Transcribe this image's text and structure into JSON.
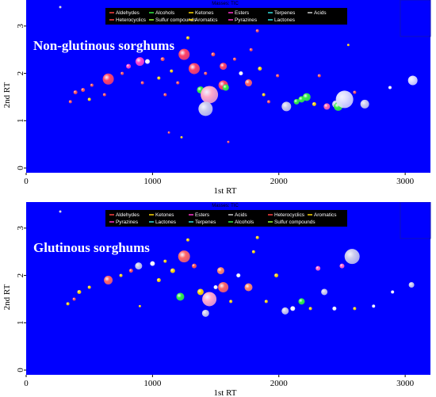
{
  "chart_data": [
    {
      "type": "scatter",
      "title": "Non-glutinous sorghums",
      "masses_label": "Masses: TIC",
      "xlabel": "1st RT",
      "ylabel": "2nd RT",
      "xlim": [
        0,
        3200
      ],
      "ylim": [
        -0.1,
        3.55
      ],
      "x_ticks": [
        0,
        1000,
        2000,
        3000
      ],
      "y_ticks": [
        0,
        1,
        2,
        3
      ],
      "legend": [
        {
          "name": "Aldehydes",
          "color": "#ff4040"
        },
        {
          "name": "Alcohols",
          "color": "#33ee44"
        },
        {
          "name": "Ketones",
          "color": "#ffd700"
        },
        {
          "name": "Esters",
          "color": "#ff33cc"
        },
        {
          "name": "Terpenes",
          "color": "#33dddd"
        },
        {
          "name": "Acids",
          "color": "#cccccc"
        },
        {
          "name": "Heterocyclics",
          "color": "#ff4040"
        },
        {
          "name": "Sulfur compounds",
          "color": "#99ff33"
        },
        {
          "name": "Aromatics",
          "color": "#ffd700"
        },
        {
          "name": "Pyrazines",
          "color": "#ff33cc"
        },
        {
          "name": "Lactones",
          "color": "#33dddd"
        }
      ],
      "points": [
        {
          "x": 270,
          "y": 3.4,
          "s": 1.5,
          "c": "#dddddd"
        },
        {
          "x": 350,
          "y": 1.4,
          "s": 2,
          "c": "#ff5555"
        },
        {
          "x": 390,
          "y": 1.6,
          "s": 2.5,
          "c": "#ff5555"
        },
        {
          "x": 450,
          "y": 1.65,
          "s": 2.5,
          "c": "#ff5555"
        },
        {
          "x": 520,
          "y": 1.75,
          "s": 2,
          "c": "#ff5555"
        },
        {
          "x": 500,
          "y": 1.45,
          "s": 2,
          "c": "#ffd700"
        },
        {
          "x": 650,
          "y": 1.88,
          "s": 7,
          "c": "#ff4466"
        },
        {
          "x": 620,
          "y": 1.55,
          "s": 2,
          "c": "#ff5555"
        },
        {
          "x": 760,
          "y": 2.0,
          "s": 2,
          "c": "#ff5555"
        },
        {
          "x": 810,
          "y": 2.15,
          "s": 3,
          "c": "#ff44cc"
        },
        {
          "x": 900,
          "y": 2.25,
          "s": 5.5,
          "c": "#ff44cc"
        },
        {
          "x": 960,
          "y": 2.25,
          "s": 3,
          "c": "#ffffff"
        },
        {
          "x": 920,
          "y": 1.8,
          "s": 2,
          "c": "#ff5555"
        },
        {
          "x": 1050,
          "y": 1.9,
          "s": 2,
          "c": "#ffd700"
        },
        {
          "x": 1080,
          "y": 2.3,
          "s": 2.5,
          "c": "#ff5555"
        },
        {
          "x": 1100,
          "y": 1.55,
          "s": 2,
          "c": "#ff5555"
        },
        {
          "x": 1130,
          "y": 0.75,
          "s": 1.5,
          "c": "#ff5555"
        },
        {
          "x": 1150,
          "y": 2.05,
          "s": 2,
          "c": "#ffd700"
        },
        {
          "x": 1200,
          "y": 1.8,
          "s": 2,
          "c": "#ff5555"
        },
        {
          "x": 1230,
          "y": 0.65,
          "s": 1.5,
          "c": "#ffd700"
        },
        {
          "x": 1250,
          "y": 2.4,
          "s": 7,
          "c": "#ff4466"
        },
        {
          "x": 1280,
          "y": 2.75,
          "s": 2,
          "c": "#ffd700"
        },
        {
          "x": 1330,
          "y": 2.1,
          "s": 7,
          "c": "#ff4466"
        },
        {
          "x": 1380,
          "y": 1.65,
          "s": 4.5,
          "c": "#33ee44"
        },
        {
          "x": 1420,
          "y": 2.0,
          "s": 2,
          "c": "#ff5555"
        },
        {
          "x": 1450,
          "y": 1.55,
          "s": 11,
          "c": "#ffaacc"
        },
        {
          "x": 1420,
          "y": 1.25,
          "s": 9,
          "c": "#ccccee"
        },
        {
          "x": 1480,
          "y": 2.4,
          "s": 2.5,
          "c": "#ff5555"
        },
        {
          "x": 1560,
          "y": 2.15,
          "s": 4.5,
          "c": "#ff4466"
        },
        {
          "x": 1560,
          "y": 1.75,
          "s": 6,
          "c": "#ff4466"
        },
        {
          "x": 1580,
          "y": 1.7,
          "s": 4,
          "c": "#33ee44"
        },
        {
          "x": 1600,
          "y": 0.55,
          "s": 1.5,
          "c": "#ff5555"
        },
        {
          "x": 1650,
          "y": 2.3,
          "s": 2,
          "c": "#ff5555"
        },
        {
          "x": 1700,
          "y": 2.0,
          "s": 2.5,
          "c": "#ffffff"
        },
        {
          "x": 1760,
          "y": 1.8,
          "s": 4.5,
          "c": "#ff6666"
        },
        {
          "x": 1780,
          "y": 2.5,
          "s": 2,
          "c": "#ff5555"
        },
        {
          "x": 1830,
          "y": 2.9,
          "s": 2,
          "c": "#ff5555"
        },
        {
          "x": 1850,
          "y": 2.1,
          "s": 2.5,
          "c": "#ffd700"
        },
        {
          "x": 1880,
          "y": 1.55,
          "s": 2,
          "c": "#ffd700"
        },
        {
          "x": 1920,
          "y": 1.4,
          "s": 2,
          "c": "#ff5555"
        },
        {
          "x": 1990,
          "y": 1.95,
          "s": 2,
          "c": "#ff5555"
        },
        {
          "x": 2060,
          "y": 1.3,
          "s": 6,
          "c": "#ccccee"
        },
        {
          "x": 2140,
          "y": 1.4,
          "s": 3.5,
          "c": "#33ee44"
        },
        {
          "x": 2180,
          "y": 1.45,
          "s": 4,
          "c": "#33ee44"
        },
        {
          "x": 2220,
          "y": 1.5,
          "s": 5,
          "c": "#33ee44"
        },
        {
          "x": 2280,
          "y": 1.35,
          "s": 2.5,
          "c": "#ffd700"
        },
        {
          "x": 2320,
          "y": 1.95,
          "s": 2,
          "c": "#ff5555"
        },
        {
          "x": 2380,
          "y": 1.3,
          "s": 4,
          "c": "#ff66aa"
        },
        {
          "x": 2450,
          "y": 1.35,
          "s": 4.5,
          "c": "#ccccee"
        },
        {
          "x": 2470,
          "y": 1.3,
          "s": 5.5,
          "c": "#33ee44"
        },
        {
          "x": 2520,
          "y": 1.45,
          "s": 11,
          "c": "#ddddff"
        },
        {
          "x": 2550,
          "y": 2.6,
          "s": 1.5,
          "c": "#ffd700"
        },
        {
          "x": 2600,
          "y": 1.6,
          "s": 2,
          "c": "#ff5555"
        },
        {
          "x": 2680,
          "y": 1.35,
          "s": 5.5,
          "c": "#ccccee"
        },
        {
          "x": 2880,
          "y": 1.7,
          "s": 2,
          "c": "#ffffff"
        },
        {
          "x": 3060,
          "y": 1.85,
          "s": 6,
          "c": "#ddddff"
        }
      ]
    },
    {
      "type": "scatter",
      "title": "Glutinous sorghums",
      "masses_label": "Masses: TIC",
      "xlabel": "1st RT",
      "ylabel": "2nd RT",
      "xlim": [
        0,
        3200
      ],
      "ylim": [
        -0.1,
        3.55
      ],
      "x_ticks": [
        0,
        1000,
        2000,
        3000
      ],
      "y_ticks": [
        0,
        1,
        2,
        3
      ],
      "legend": [
        {
          "name": "Aldehydes",
          "color": "#ff4040"
        },
        {
          "name": "Ketones",
          "color": "#ffd700"
        },
        {
          "name": "Esters",
          "color": "#ff33cc"
        },
        {
          "name": "Acids",
          "color": "#cccccc"
        },
        {
          "name": "Heterocyclics",
          "color": "#ff4040"
        },
        {
          "name": "Aromatics",
          "color": "#ffd700"
        },
        {
          "name": "Pyrazines",
          "color": "#ff33cc"
        },
        {
          "name": "Lactones",
          "color": "#33dddd"
        },
        {
          "name": "Terpenes",
          "color": "#33dddd"
        },
        {
          "name": "Alcohols",
          "color": "#33ee44"
        },
        {
          "name": "Sulfur compounds",
          "color": "#99ff33"
        }
      ],
      "points": [
        {
          "x": 270,
          "y": 3.35,
          "s": 1.5,
          "c": "#dddddd"
        },
        {
          "x": 330,
          "y": 1.4,
          "s": 2,
          "c": "#ffd700"
        },
        {
          "x": 380,
          "y": 1.5,
          "s": 2,
          "c": "#ff5555"
        },
        {
          "x": 420,
          "y": 1.65,
          "s": 2.5,
          "c": "#ffd700"
        },
        {
          "x": 500,
          "y": 1.75,
          "s": 2,
          "c": "#ffd700"
        },
        {
          "x": 650,
          "y": 1.9,
          "s": 5.5,
          "c": "#ff6666"
        },
        {
          "x": 750,
          "y": 2.0,
          "s": 2,
          "c": "#ffd700"
        },
        {
          "x": 830,
          "y": 2.1,
          "s": 2.5,
          "c": "#ff5555"
        },
        {
          "x": 890,
          "y": 2.2,
          "s": 4.5,
          "c": "#ccccee"
        },
        {
          "x": 900,
          "y": 1.35,
          "s": 1.5,
          "c": "#ffd700"
        },
        {
          "x": 1000,
          "y": 2.25,
          "s": 3,
          "c": "#ffffff"
        },
        {
          "x": 1050,
          "y": 1.9,
          "s": 2.5,
          "c": "#ffd700"
        },
        {
          "x": 1100,
          "y": 2.3,
          "s": 2,
          "c": "#ffd700"
        },
        {
          "x": 1160,
          "y": 2.1,
          "s": 3,
          "c": "#ffd700"
        },
        {
          "x": 1220,
          "y": 1.55,
          "s": 5,
          "c": "#33ee44"
        },
        {
          "x": 1250,
          "y": 2.4,
          "s": 7.5,
          "c": "#ff6666"
        },
        {
          "x": 1280,
          "y": 2.75,
          "s": 2,
          "c": "#ffd700"
        },
        {
          "x": 1330,
          "y": 2.2,
          "s": 3,
          "c": "#ff5555"
        },
        {
          "x": 1380,
          "y": 1.65,
          "s": 4,
          "c": "#ffd700"
        },
        {
          "x": 1420,
          "y": 1.2,
          "s": 4.5,
          "c": "#ccccee"
        },
        {
          "x": 1450,
          "y": 1.5,
          "s": 9,
          "c": "#ffaacc"
        },
        {
          "x": 1500,
          "y": 1.75,
          "s": 2.5,
          "c": "#ffffff"
        },
        {
          "x": 1540,
          "y": 2.1,
          "s": 4.5,
          "c": "#ff8866"
        },
        {
          "x": 1560,
          "y": 1.75,
          "s": 6.5,
          "c": "#ff6666"
        },
        {
          "x": 1620,
          "y": 1.45,
          "s": 2,
          "c": "#ffd700"
        },
        {
          "x": 1680,
          "y": 2.0,
          "s": 2.5,
          "c": "#ffffff"
        },
        {
          "x": 1760,
          "y": 1.75,
          "s": 5,
          "c": "#ff8866"
        },
        {
          "x": 1800,
          "y": 2.5,
          "s": 2,
          "c": "#ffd700"
        },
        {
          "x": 1830,
          "y": 2.8,
          "s": 2,
          "c": "#ffd700"
        },
        {
          "x": 1900,
          "y": 1.45,
          "s": 2,
          "c": "#ffd700"
        },
        {
          "x": 1980,
          "y": 2.0,
          "s": 2.5,
          "c": "#ffd700"
        },
        {
          "x": 2050,
          "y": 1.25,
          "s": 4.5,
          "c": "#ccccee"
        },
        {
          "x": 2110,
          "y": 1.3,
          "s": 3,
          "c": "#ffffff"
        },
        {
          "x": 2180,
          "y": 1.45,
          "s": 4,
          "c": "#33ee44"
        },
        {
          "x": 2250,
          "y": 1.3,
          "s": 2,
          "c": "#ffd700"
        },
        {
          "x": 2310,
          "y": 2.15,
          "s": 3,
          "c": "#ff66cc"
        },
        {
          "x": 2360,
          "y": 1.65,
          "s": 4,
          "c": "#ccccee"
        },
        {
          "x": 2440,
          "y": 1.3,
          "s": 2.5,
          "c": "#ffffff"
        },
        {
          "x": 2500,
          "y": 2.2,
          "s": 3,
          "c": "#ff66cc"
        },
        {
          "x": 2580,
          "y": 2.4,
          "s": 9.5,
          "c": "#ccccee"
        },
        {
          "x": 2600,
          "y": 1.3,
          "s": 2,
          "c": "#ffd700"
        },
        {
          "x": 2750,
          "y": 1.35,
          "s": 2,
          "c": "#ffffff"
        },
        {
          "x": 2900,
          "y": 1.65,
          "s": 2,
          "c": "#ffffff"
        },
        {
          "x": 3050,
          "y": 1.8,
          "s": 3.5,
          "c": "#ccccee"
        }
      ]
    }
  ]
}
